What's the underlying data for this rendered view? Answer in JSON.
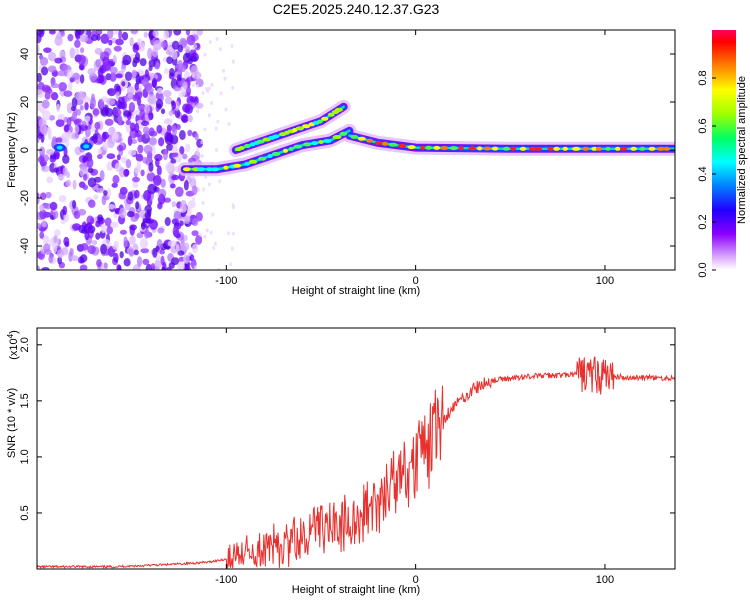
{
  "chart_data": [
    {
      "type": "heatmap",
      "title": "C2E5.2025.240.12.37.G23",
      "xlabel": "Height of straight line (km)",
      "ylabel": "Frequency (Hz)",
      "xlim": [
        -200,
        137
      ],
      "ylim": [
        -50,
        50
      ],
      "xticks": [
        -100,
        0,
        100
      ],
      "yticks": [
        -40,
        -20,
        0,
        20,
        40
      ],
      "colorbar": {
        "label": "Normalized spectral amplitude",
        "range": [
          0,
          1
        ],
        "ticks": [
          "0.0",
          "0.2",
          "0.4",
          "0.6",
          "0.8"
        ],
        "colors": [
          "#ffffff",
          "#e0b0ff",
          "#8a00ff",
          "#2000ff",
          "#0080ff",
          "#00ffff",
          "#00ff60",
          "#a0ff00",
          "#ffff00",
          "#ff8000",
          "#ff0000",
          "#ff0060"
        ]
      },
      "noise_region_x": [
        -200,
        -120
      ],
      "tracks": [
        {
          "name": "lower branch",
          "x": [
            -122,
            -105,
            -90,
            -75,
            -60,
            -45,
            -35
          ],
          "y": [
            -8,
            -8,
            -6,
            -2,
            2,
            4,
            8
          ]
        },
        {
          "name": "upper branch",
          "x": [
            -95,
            -80,
            -65,
            -50,
            -38
          ],
          "y": [
            0,
            4,
            8,
            12,
            18
          ]
        },
        {
          "name": "main line",
          "x": [
            -35,
            -20,
            0,
            50,
            100,
            137
          ],
          "y": [
            6,
            3,
            1,
            0.5,
            0.5,
            0.5
          ]
        }
      ]
    },
    {
      "type": "line",
      "xlabel": "Height of straight line (km)",
      "ylabel": "SNR (10 * v/v)",
      "y_multiplier": "(x10",
      "y_multiplier_exp": "4",
      "xlim": [
        -200,
        137
      ],
      "ylim": [
        0,
        2.15
      ],
      "xticks": [
        -100,
        0,
        100
      ],
      "yticks": [
        "0.5",
        "1.0",
        "1.5",
        "2.0"
      ],
      "ytick_values": [
        0.5,
        1.0,
        1.5,
        2.0
      ],
      "series": [
        {
          "name": "SNR",
          "color": "#e8302e",
          "x": [
            -200,
            -160,
            -130,
            -110,
            -100,
            -90,
            -80,
            -70,
            -60,
            -50,
            -40,
            -30,
            -20,
            -10,
            0,
            10,
            20,
            30,
            40,
            60,
            80,
            90,
            100,
            110,
            137
          ],
          "y": [
            0.02,
            0.02,
            0.04,
            0.06,
            0.09,
            0.14,
            0.18,
            0.22,
            0.3,
            0.35,
            0.4,
            0.45,
            0.6,
            0.75,
            0.95,
            1.25,
            1.45,
            1.6,
            1.68,
            1.72,
            1.73,
            1.74,
            1.72,
            1.71,
            1.7
          ]
        }
      ]
    }
  ]
}
